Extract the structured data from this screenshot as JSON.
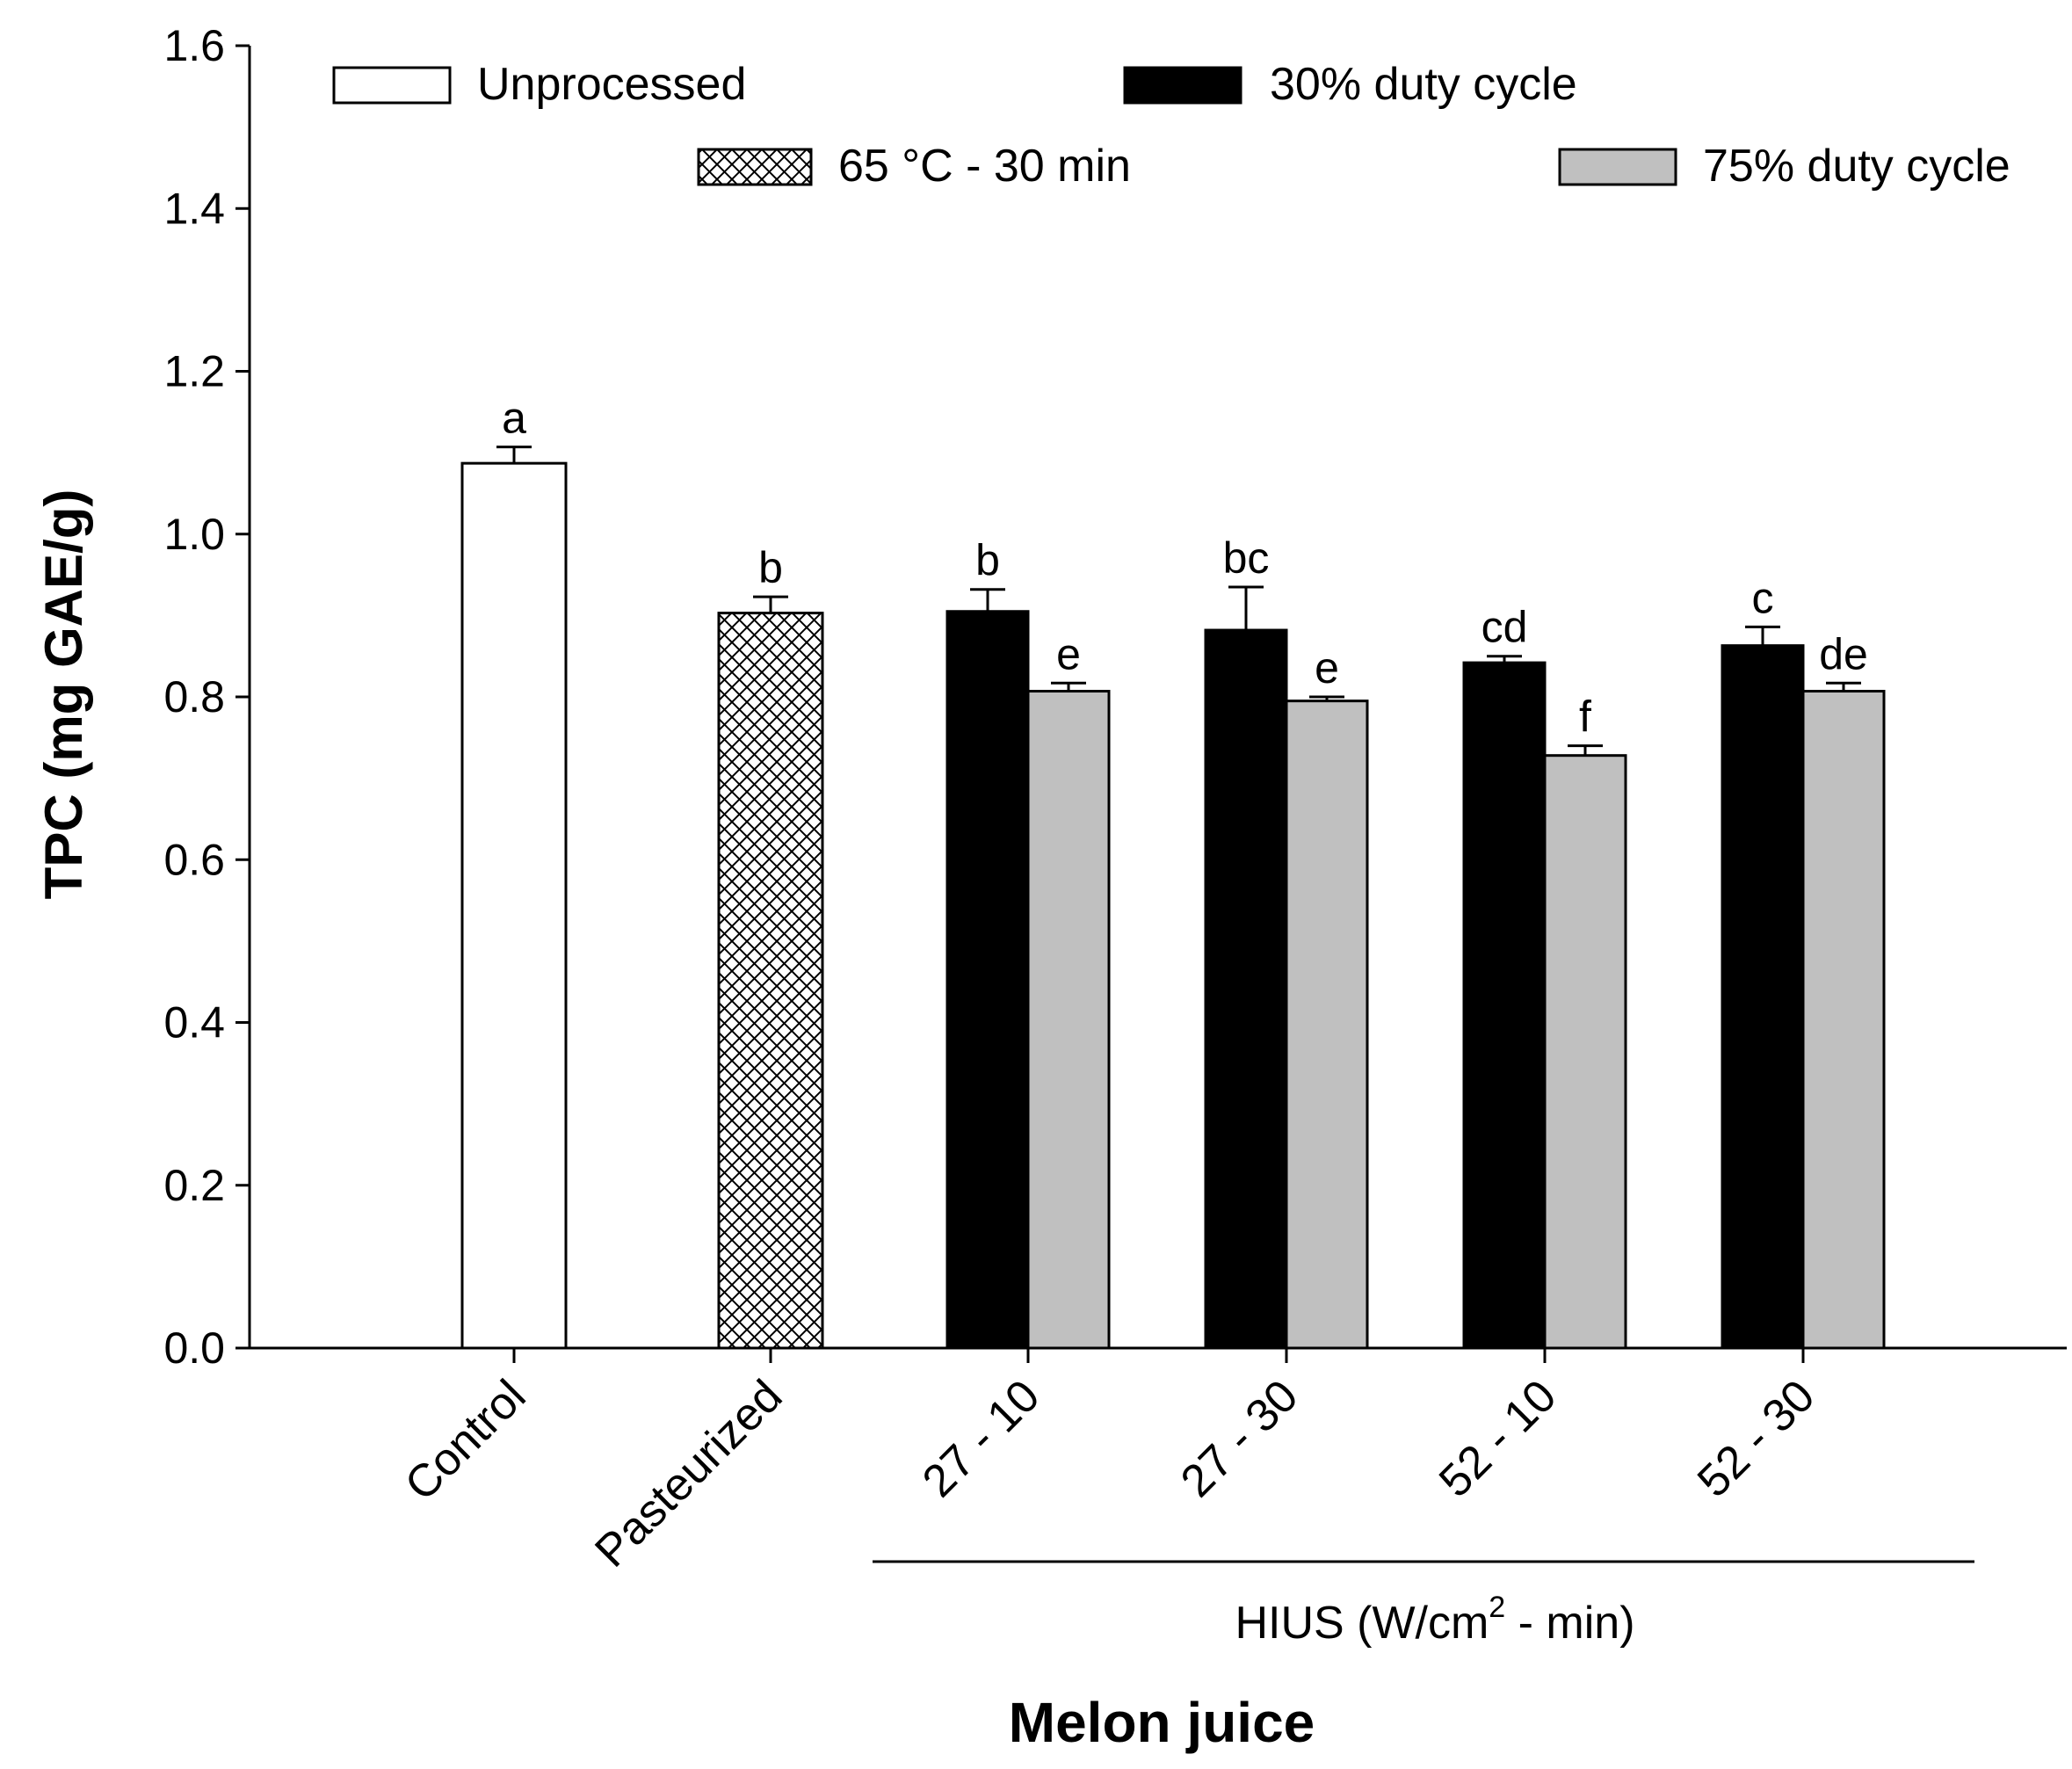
{
  "chart_data": {
    "type": "bar",
    "title": "",
    "xlabel": "Melon juice",
    "ylabel": "TPC (mg GAE/g)",
    "ylim": [
      0,
      1.6
    ],
    "yticks": [
      "0.0",
      "0.2",
      "0.4",
      "0.6",
      "0.8",
      "1.0",
      "1.2",
      "1.4",
      "1.6"
    ],
    "categories": [
      "Control",
      "Pasteurized",
      "27 - 10",
      "27 - 30",
      "52 - 10",
      "52 - 30"
    ],
    "group_label": {
      "main": "HIUS (W/cm",
      "sup": "2",
      "rest": " - min)",
      "categories": [
        "27 - 10",
        "27 - 30",
        "52 - 10",
        "52 - 30"
      ]
    },
    "legend": {
      "unprocessed": "Unprocessed",
      "pasteurized": "65 °C - 30 min",
      "duty30": "30% duty cycle",
      "duty75": "75% duty cycle"
    },
    "series": [
      {
        "key": "unprocessed",
        "name": "Unprocessed",
        "fill": "#ffffff",
        "pattern": "none",
        "points": [
          {
            "category": "Control",
            "value": 1.087,
            "error": 0.02,
            "letter": "a"
          }
        ]
      },
      {
        "key": "pasteurized",
        "name": "65 °C - 30 min",
        "fill": "#ffffff",
        "pattern": "crosshatch",
        "points": [
          {
            "category": "Pasteurized",
            "value": 0.903,
            "error": 0.02,
            "letter": "b"
          }
        ]
      },
      {
        "key": "duty30",
        "name": "30% duty cycle",
        "fill": "#000000",
        "pattern": "none",
        "points": [
          {
            "category": "27 - 10",
            "value": 0.905,
            "error": 0.027,
            "letter": "b"
          },
          {
            "category": "27 - 30",
            "value": 0.882,
            "error": 0.053,
            "letter": "bc"
          },
          {
            "category": "52 - 10",
            "value": 0.842,
            "error": 0.008,
            "letter": "cd"
          },
          {
            "category": "52 - 30",
            "value": 0.863,
            "error": 0.023,
            "letter": "c"
          }
        ]
      },
      {
        "key": "duty75",
        "name": "75% duty cycle",
        "fill": "#c0c0c0",
        "pattern": "none",
        "points": [
          {
            "category": "27 - 10",
            "value": 0.807,
            "error": 0.01,
            "letter": "e"
          },
          {
            "category": "27 - 30",
            "value": 0.795,
            "error": 0.005,
            "letter": "e"
          },
          {
            "category": "52 - 10",
            "value": 0.728,
            "error": 0.012,
            "letter": "f"
          },
          {
            "category": "52 - 30",
            "value": 0.807,
            "error": 0.01,
            "letter": "de"
          }
        ]
      }
    ]
  }
}
